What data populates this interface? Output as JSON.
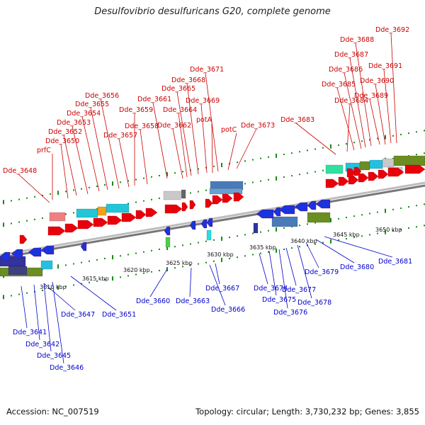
{
  "title": "Desulfovibrio desulfuricans G20, complete genome",
  "footer": {
    "accession": "Accession: NC_007519",
    "topology": "Topology: circular; Length: 3,730,232 bp; Genes: 3,855"
  },
  "colors": {
    "forward": "#e8000a",
    "reverse": "#1a33dd",
    "forward_label": "#cc0000",
    "reverse_label": "#0000cc",
    "axis": "#888888",
    "dot": "#1a8a1a"
  },
  "scale_ticks": [
    "3610 kbp",
    "3615 kbp",
    "3620 kbp",
    "3625 kbp",
    "3630 kbp",
    "3635 kbp",
    "3640 kbp",
    "3645 kbp",
    "3650 kbp"
  ],
  "forward_genes": [
    "Dde_3648",
    "prfC",
    "Dde_3650",
    "Dde_3652",
    "Dde_3653",
    "Dde_3654",
    "Dde_3655",
    "Dde_3656",
    "Dde_3657",
    "Dde_3658",
    "Dde_3659",
    "Dde_3661",
    "Dde_3662",
    "Dde_3664",
    "Dde_3665",
    "Dde_3668",
    "Dde_3669",
    "Dde_3671",
    "potA",
    "potC",
    "Dde_3673",
    "Dde_3683",
    "Dde_3684",
    "Dde_3685",
    "Dde_3686",
    "Dde_3687",
    "Dde_3688",
    "Dde_3689",
    "Dde_3690",
    "Dde_3691",
    "Dde_3692"
  ],
  "reverse_genes": [
    "Dde_3641",
    "Dde_3642",
    "Dde_3645",
    "Dde_3646",
    "Dde_3647",
    "Dde_3651",
    "Dde_3660",
    "Dde_3663",
    "Dde_3666",
    "Dde_3667",
    "Dde_3674",
    "Dde_3675",
    "Dde_3676",
    "Dde_3677",
    "Dde_3678",
    "Dde_3679",
    "Dde_3680",
    "Dde_3681"
  ]
}
